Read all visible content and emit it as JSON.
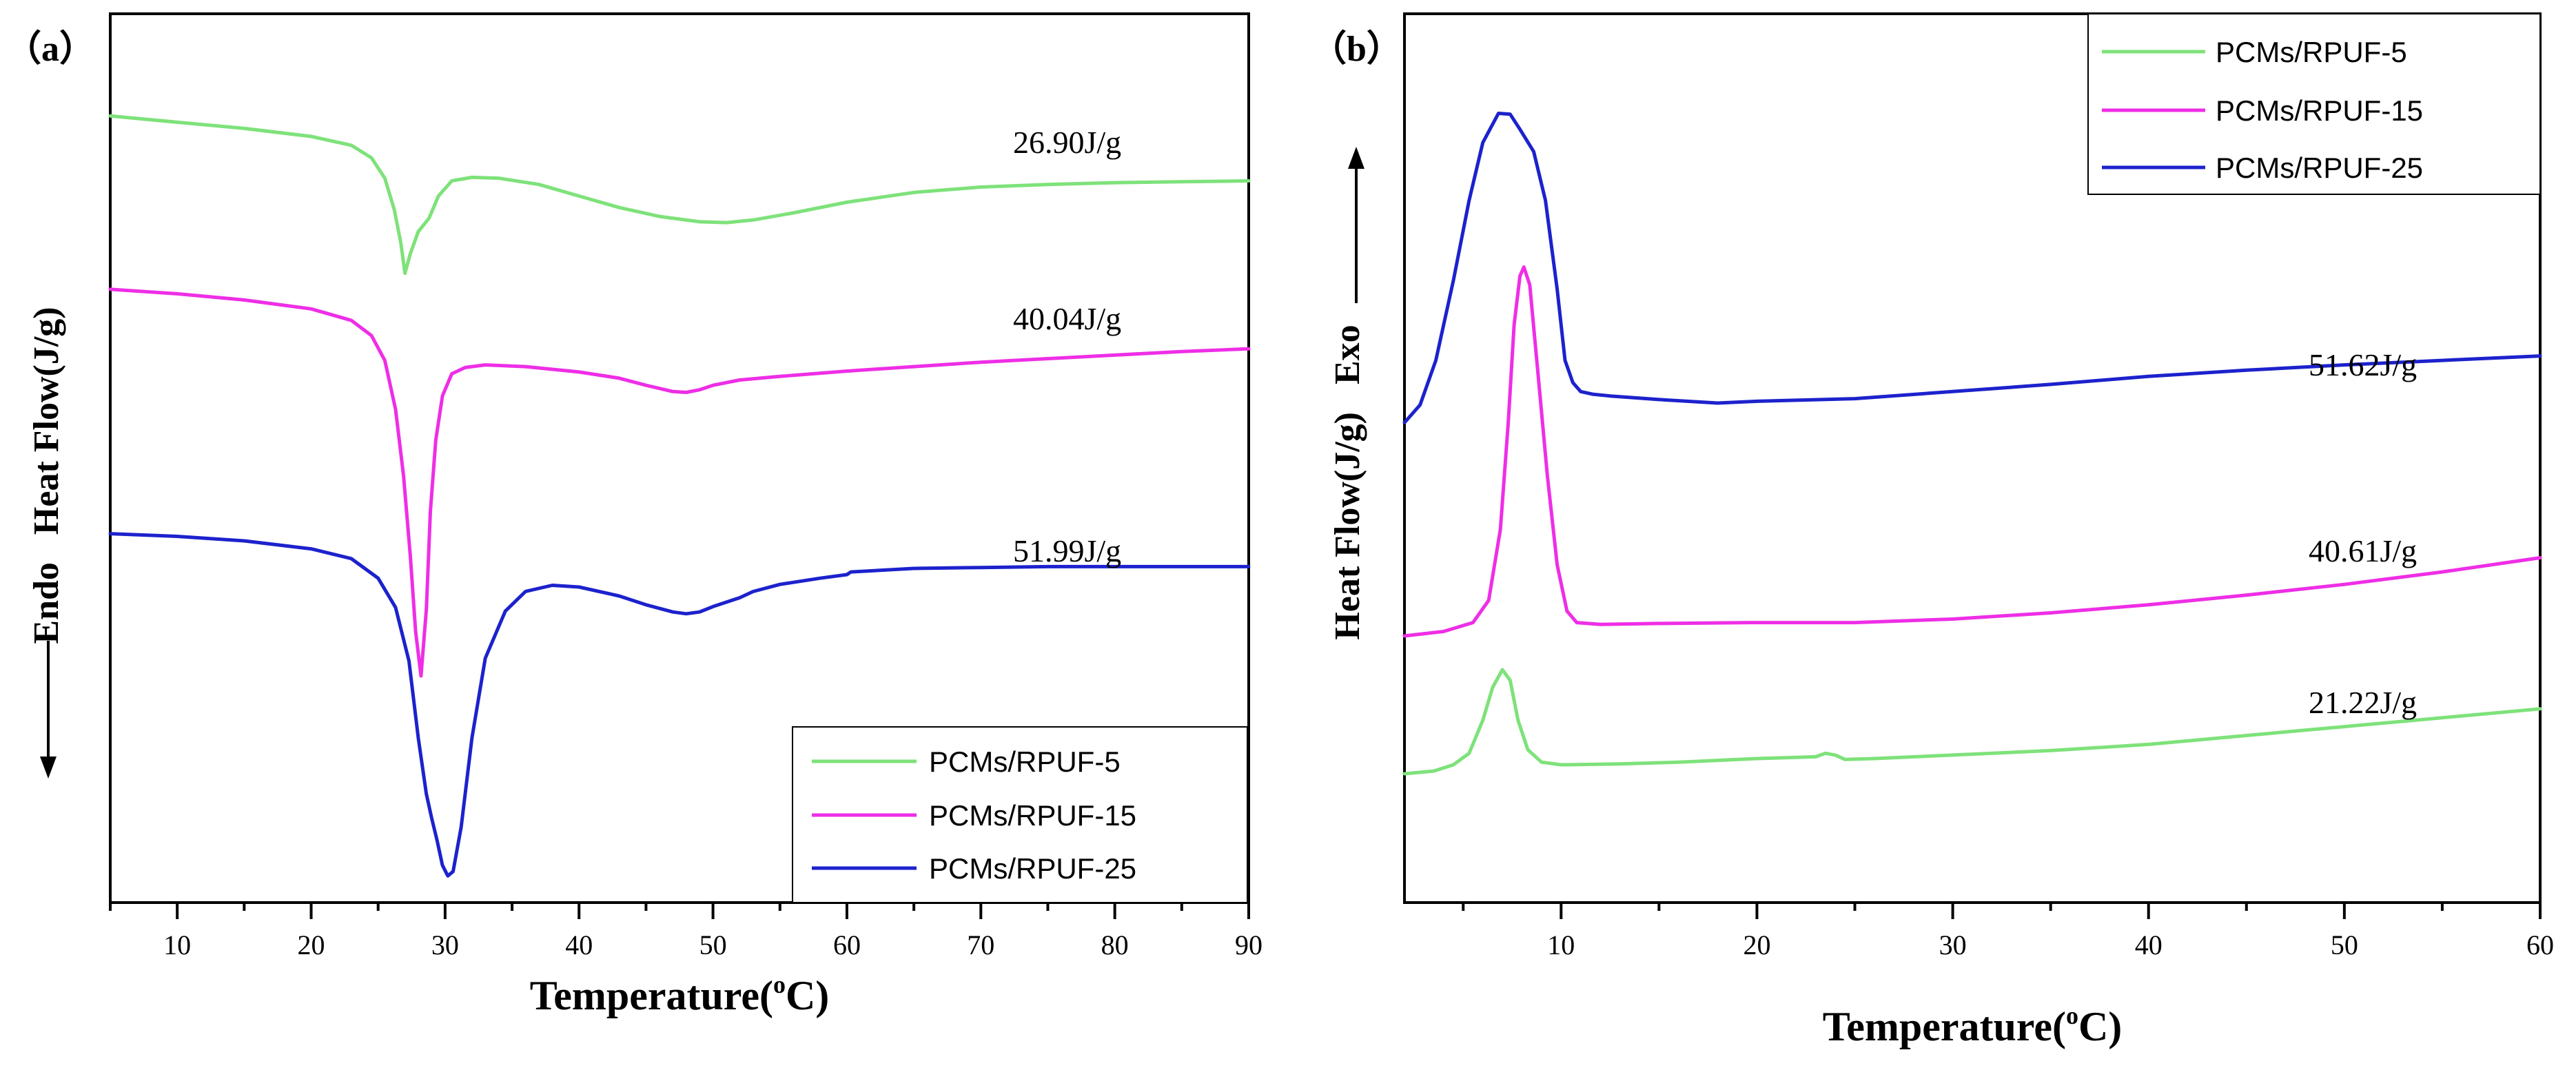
{
  "chart_data": [
    {
      "panel_label": "（a）",
      "type": "line",
      "title": "",
      "xlabel": "Temperature(℃)",
      "xlabel_main": "Temperature(",
      "xlabel_sup": "o",
      "xlabel_end": "C)",
      "ylabel": "Heat Flow(J/g)",
      "ylabel_left": "Endo",
      "ylabel_direction": "down",
      "xlim": [
        5,
        90
      ],
      "xticks": [
        10,
        20,
        30,
        40,
        50,
        60,
        70,
        80,
        90
      ],
      "ylim": [
        0,
        10
      ],
      "legend_position": "bottom-right",
      "series": [
        {
          "name": "PCMs/RPUF-5",
          "color": "#7ee27a",
          "enthalpy": "26.90J/g",
          "x": [
            5,
            10,
            15,
            20,
            23,
            24.5,
            25.5,
            26.2,
            26.7,
            27.0,
            27.4,
            28.0,
            28.8,
            29.5,
            30.5,
            32,
            34,
            37,
            40,
            43,
            46,
            49,
            51,
            53,
            56,
            60,
            65,
            70,
            75,
            80,
            85,
            90
          ],
          "y": [
            8.85,
            8.78,
            8.71,
            8.62,
            8.52,
            8.38,
            8.15,
            7.8,
            7.42,
            7.08,
            7.3,
            7.55,
            7.7,
            7.95,
            8.12,
            8.16,
            8.15,
            8.08,
            7.95,
            7.82,
            7.72,
            7.66,
            7.65,
            7.68,
            7.76,
            7.88,
            7.99,
            8.05,
            8.08,
            8.1,
            8.11,
            8.12
          ]
        },
        {
          "name": "PCMs/RPUF-15",
          "color": "#ee2ee6",
          "enthalpy": "40.04J/g",
          "x": [
            5,
            10,
            15,
            20,
            23,
            24.5,
            25.5,
            26.3,
            26.9,
            27.4,
            27.8,
            28.2,
            28.6,
            28.9,
            29.3,
            29.8,
            30.5,
            31.5,
            33,
            36,
            40,
            43,
            45,
            47,
            48,
            49,
            50,
            52,
            55,
            60,
            65,
            70,
            75,
            80,
            85,
            90
          ],
          "y": [
            6.9,
            6.85,
            6.78,
            6.68,
            6.55,
            6.38,
            6.1,
            5.55,
            4.8,
            3.9,
            3.05,
            2.55,
            3.3,
            4.4,
            5.2,
            5.7,
            5.95,
            6.02,
            6.05,
            6.03,
            5.97,
            5.9,
            5.82,
            5.75,
            5.74,
            5.77,
            5.82,
            5.88,
            5.92,
            5.98,
            6.03,
            6.08,
            6.12,
            6.16,
            6.2,
            6.23
          ]
        },
        {
          "name": "PCMs/RPUF-25",
          "color": "#1c22cc",
          "enthalpy": "51.99J/g",
          "x": [
            5,
            10,
            15,
            20,
            23,
            25,
            26.3,
            27.3,
            28.0,
            28.6,
            29.0,
            29.4,
            29.8,
            30.2,
            30.6,
            31.2,
            32,
            33,
            34.5,
            36,
            38,
            40,
            43,
            45,
            47,
            48,
            49,
            50,
            52,
            53,
            55,
            58,
            60,
            60.3,
            65,
            70,
            75,
            80,
            85,
            90
          ],
          "y": [
            4.15,
            4.12,
            4.07,
            3.98,
            3.87,
            3.65,
            3.32,
            2.72,
            1.85,
            1.22,
            0.95,
            0.7,
            0.42,
            0.3,
            0.35,
            0.85,
            1.85,
            2.75,
            3.28,
            3.5,
            3.57,
            3.55,
            3.45,
            3.35,
            3.27,
            3.25,
            3.27,
            3.33,
            3.43,
            3.5,
            3.58,
            3.65,
            3.69,
            3.72,
            3.76,
            3.77,
            3.78,
            3.78,
            3.78,
            3.78
          ]
        }
      ]
    },
    {
      "panel_label": "（b）",
      "type": "line",
      "title": "",
      "xlabel": "Temperature(℃)",
      "xlabel_main": "Temperature(",
      "xlabel_sup": "o",
      "xlabel_end": "C)",
      "ylabel": "Heat Flow(J/g)",
      "ylabel_left": "Exo",
      "ylabel_direction": "up",
      "xlim": [
        2,
        60
      ],
      "xticks": [
        10,
        20,
        30,
        40,
        50,
        60
      ],
      "ylim": [
        0,
        10
      ],
      "legend_position": "top-right",
      "series": [
        {
          "name": "PCMs/RPUF-5",
          "color": "#7ee27a",
          "enthalpy": "21.22J/g",
          "x": [
            2,
            3.5,
            4.5,
            5.3,
            6.0,
            6.5,
            7.0,
            7.4,
            7.8,
            8.3,
            9,
            10,
            13,
            16,
            20,
            23,
            23.5,
            24,
            24.5,
            26,
            30,
            35,
            40,
            45,
            50,
            55,
            60
          ],
          "y": [
            1.45,
            1.48,
            1.55,
            1.68,
            2.05,
            2.42,
            2.62,
            2.5,
            2.05,
            1.72,
            1.58,
            1.55,
            1.56,
            1.58,
            1.62,
            1.64,
            1.68,
            1.66,
            1.61,
            1.62,
            1.66,
            1.71,
            1.78,
            1.88,
            1.98,
            2.08,
            2.18
          ]
        },
        {
          "name": "PCMs/RPUF-15",
          "color": "#ee2ee6",
          "enthalpy": "40.61J/g",
          "x": [
            2,
            4,
            5.5,
            6.3,
            6.9,
            7.3,
            7.6,
            7.9,
            8.1,
            8.4,
            8.8,
            9.3,
            9.8,
            10.3,
            10.8,
            12,
            15,
            20,
            25,
            30,
            35,
            40,
            45,
            50,
            55,
            60
          ],
          "y": [
            3.0,
            3.05,
            3.15,
            3.4,
            4.2,
            5.4,
            6.5,
            7.05,
            7.15,
            6.95,
            6.0,
            4.8,
            3.8,
            3.28,
            3.15,
            3.13,
            3.14,
            3.15,
            3.15,
            3.19,
            3.26,
            3.35,
            3.46,
            3.58,
            3.72,
            3.88
          ]
        },
        {
          "name": "PCMs/RPUF-25",
          "color": "#1c22cc",
          "enthalpy": "51.62J/g",
          "x": [
            2,
            2.8,
            3.6,
            4.5,
            5.3,
            6.0,
            6.8,
            7.4,
            7.9,
            8.6,
            9.2,
            9.8,
            10.2,
            10.6,
            11.0,
            11.6,
            12.5,
            15,
            18,
            20,
            25,
            30,
            35,
            40,
            45,
            50,
            55,
            60
          ],
          "y": [
            5.4,
            5.6,
            6.1,
            7.0,
            7.9,
            8.55,
            8.88,
            8.87,
            8.7,
            8.45,
            7.9,
            6.9,
            6.1,
            5.85,
            5.75,
            5.72,
            5.7,
            5.66,
            5.62,
            5.64,
            5.67,
            5.75,
            5.83,
            5.92,
            5.99,
            6.05,
            6.1,
            6.15
          ]
        }
      ]
    }
  ]
}
